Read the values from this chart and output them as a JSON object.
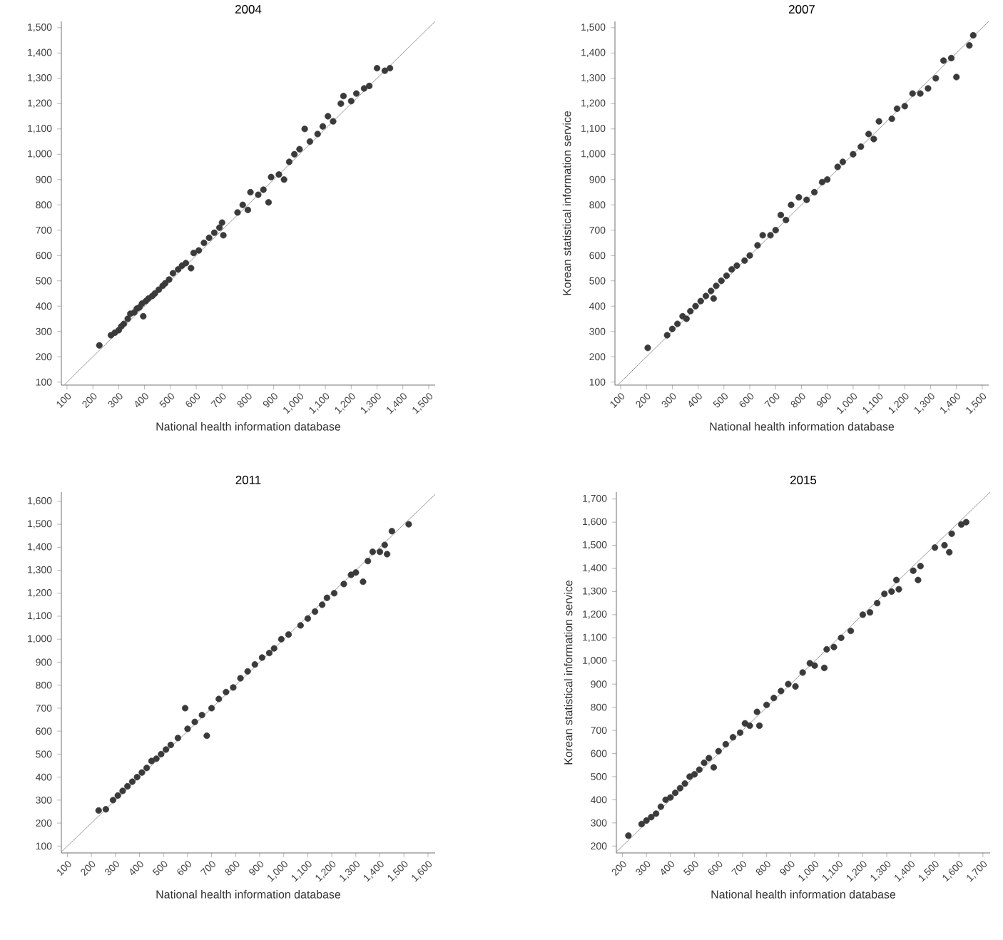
{
  "chart_data": [
    {
      "type": "scatter",
      "title": "2004",
      "xlabel": "National health information database",
      "xlim": [
        78,
        1525
      ],
      "ylim": [
        88,
        1525
      ],
      "xticks": [
        100,
        200,
        300,
        400,
        500,
        600,
        700,
        800,
        900,
        {
          "value": 1000,
          "label": "1,000"
        },
        {
          "value": 1100,
          "label": "1,100"
        },
        {
          "value": 1200,
          "label": "1,200"
        },
        {
          "value": 1300,
          "label": "1,300"
        },
        {
          "value": 1400,
          "label": "1,400"
        },
        {
          "value": 1500,
          "label": "1,500"
        }
      ],
      "yticks": [
        100,
        200,
        300,
        400,
        500,
        600,
        700,
        800,
        900,
        {
          "value": 1000,
          "label": "1,000"
        },
        {
          "value": 1100,
          "label": "1,100"
        },
        {
          "value": 1200,
          "label": "1,200"
        },
        {
          "value": 1300,
          "label": "1,300"
        },
        {
          "value": 1400,
          "label": "1,400"
        },
        {
          "value": 1500,
          "label": "1,500"
        }
      ],
      "series": [
        {
          "marker": "circle",
          "color": "#3a3a3a",
          "x": [
            225,
            270,
            285,
            300,
            310,
            320,
            335,
            345,
            360,
            370,
            380,
            390,
            395,
            405,
            415,
            430,
            440,
            455,
            470,
            480,
            495,
            510,
            530,
            545,
            560,
            580,
            590,
            610,
            630,
            650,
            670,
            690,
            700,
            705,
            760,
            780,
            800,
            810,
            840,
            860,
            880,
            890,
            920,
            940,
            960,
            980,
            1000,
            1020,
            1040,
            1070,
            1090,
            1110,
            1130,
            1160,
            1170,
            1200,
            1220,
            1250,
            1270,
            1300,
            1330,
            1350
          ],
          "values": [
            245,
            285,
            295,
            305,
            320,
            330,
            350,
            370,
            375,
            390,
            395,
            410,
            360,
            420,
            430,
            440,
            450,
            465,
            480,
            490,
            505,
            530,
            545,
            560,
            570,
            550,
            610,
            620,
            650,
            670,
            690,
            710,
            730,
            680,
            770,
            800,
            780,
            850,
            840,
            860,
            810,
            910,
            920,
            900,
            970,
            1000,
            1020,
            1100,
            1050,
            1080,
            1110,
            1150,
            1130,
            1200,
            1230,
            1210,
            1240,
            1260,
            1270,
            1340,
            1330,
            1340
          ]
        },
        {
          "type": "line",
          "marker": "none",
          "color": "#999999",
          "x": [
            88,
            1525
          ],
          "values": [
            88,
            1525
          ]
        }
      ]
    },
    {
      "type": "scatter",
      "title": "2007",
      "xlabel": "National health information database",
      "ylabel": "Korean statistical information service",
      "xlim": [
        78,
        1525
      ],
      "ylim": [
        88,
        1525
      ],
      "xticks": [
        100,
        200,
        300,
        400,
        500,
        600,
        700,
        800,
        900,
        {
          "value": 1000,
          "label": "1,000"
        },
        {
          "value": 1100,
          "label": "1,100"
        },
        {
          "value": 1200,
          "label": "1,200"
        },
        {
          "value": 1300,
          "label": "1,300"
        },
        {
          "value": 1400,
          "label": "1,400"
        },
        {
          "value": 1500,
          "label": "1,500"
        }
      ],
      "yticks": [
        100,
        200,
        300,
        400,
        500,
        600,
        700,
        800,
        900,
        {
          "value": 1000,
          "label": "1,000"
        },
        {
          "value": 1100,
          "label": "1,100"
        },
        {
          "value": 1200,
          "label": "1,200"
        },
        {
          "value": 1300,
          "label": "1,300"
        },
        {
          "value": 1400,
          "label": "1,400"
        },
        {
          "value": 1500,
          "label": "1,500"
        }
      ],
      "series": [
        {
          "marker": "circle",
          "color": "#3a3a3a",
          "x": [
            205,
            280,
            300,
            320,
            340,
            355,
            370,
            390,
            410,
            430,
            450,
            460,
            470,
            490,
            510,
            530,
            550,
            580,
            600,
            630,
            650,
            680,
            700,
            720,
            740,
            760,
            790,
            820,
            850,
            880,
            900,
            940,
            960,
            1000,
            1030,
            1060,
            1080,
            1100,
            1150,
            1170,
            1200,
            1230,
            1260,
            1290,
            1320,
            1350,
            1380,
            1400,
            1450,
            1465
          ],
          "values": [
            235,
            285,
            310,
            330,
            360,
            350,
            380,
            400,
            420,
            440,
            460,
            430,
            480,
            500,
            520,
            545,
            560,
            580,
            600,
            640,
            680,
            680,
            700,
            760,
            740,
            800,
            830,
            820,
            850,
            890,
            900,
            950,
            970,
            1000,
            1030,
            1080,
            1060,
            1130,
            1140,
            1180,
            1190,
            1240,
            1240,
            1260,
            1300,
            1370,
            1380,
            1305,
            1430,
            1470
          ]
        },
        {
          "type": "line",
          "marker": "none",
          "color": "#999999",
          "x": [
            88,
            1525
          ],
          "values": [
            88,
            1525
          ]
        }
      ]
    },
    {
      "type": "scatter",
      "title": "2011",
      "xlabel": "National health information database",
      "xlim": [
        75,
        1630
      ],
      "ylim": [
        70,
        1640
      ],
      "xticks": [
        100,
        200,
        300,
        400,
        500,
        600,
        700,
        800,
        900,
        {
          "value": 1000,
          "label": "1,000"
        },
        {
          "value": 1100,
          "label": "1,100"
        },
        {
          "value": 1200,
          "label": "1,200"
        },
        {
          "value": 1300,
          "label": "1,300"
        },
        {
          "value": 1400,
          "label": "1,400"
        },
        {
          "value": 1500,
          "label": "1,500"
        },
        {
          "value": 1600,
          "label": "1,600"
        }
      ],
      "yticks": [
        100,
        200,
        300,
        400,
        500,
        600,
        700,
        800,
        900,
        {
          "value": 1000,
          "label": "1,000"
        },
        {
          "value": 1100,
          "label": "1,100"
        },
        {
          "value": 1200,
          "label": "1,200"
        },
        {
          "value": 1300,
          "label": "1,300"
        },
        {
          "value": 1400,
          "label": "1,400"
        },
        {
          "value": 1500,
          "label": "1,500"
        },
        {
          "value": 1600,
          "label": "1,600"
        }
      ],
      "series": [
        {
          "marker": "circle",
          "color": "#3a3a3a",
          "x": [
            230,
            260,
            290,
            310,
            330,
            350,
            370,
            390,
            410,
            430,
            450,
            470,
            490,
            510,
            530,
            560,
            590,
            600,
            630,
            660,
            680,
            700,
            730,
            760,
            790,
            820,
            850,
            880,
            910,
            940,
            960,
            990,
            1020,
            1070,
            1100,
            1130,
            1160,
            1180,
            1210,
            1250,
            1280,
            1300,
            1330,
            1350,
            1370,
            1400,
            1420,
            1430,
            1450,
            1520
          ],
          "values": [
            255,
            260,
            300,
            320,
            340,
            360,
            380,
            400,
            420,
            440,
            470,
            480,
            500,
            520,
            540,
            570,
            700,
            610,
            640,
            670,
            580,
            700,
            740,
            770,
            790,
            830,
            860,
            890,
            920,
            940,
            960,
            1000,
            1020,
            1060,
            1090,
            1120,
            1150,
            1180,
            1200,
            1240,
            1280,
            1290,
            1250,
            1340,
            1380,
            1380,
            1410,
            1370,
            1470,
            1500
          ]
        },
        {
          "type": "line",
          "marker": "none",
          "color": "#999999",
          "x": [
            75,
            1630
          ],
          "values": [
            75,
            1630
          ]
        }
      ]
    },
    {
      "type": "scatter",
      "title": "2015",
      "xlabel": "National health information database",
      "ylabel": "Korean statistical information service",
      "xlim": [
        175,
        1730
      ],
      "ylim": [
        170,
        1730
      ],
      "xticks": [
        200,
        300,
        400,
        500,
        600,
        700,
        800,
        900,
        {
          "value": 1000,
          "label": "1,000"
        },
        {
          "value": 1100,
          "label": "1,100"
        },
        {
          "value": 1200,
          "label": "1,200"
        },
        {
          "value": 1300,
          "label": "1,300"
        },
        {
          "value": 1400,
          "label": "1,400"
        },
        {
          "value": 1500,
          "label": "1,500"
        },
        {
          "value": 1600,
          "label": "1,600"
        },
        {
          "value": 1700,
          "label": "1,700"
        }
      ],
      "yticks": [
        200,
        300,
        400,
        500,
        600,
        700,
        800,
        900,
        {
          "value": 1000,
          "label": "1,000"
        },
        {
          "value": 1100,
          "label": "1,100"
        },
        {
          "value": 1200,
          "label": "1,200"
        },
        {
          "value": 1300,
          "label": "1,300"
        },
        {
          "value": 1400,
          "label": "1,400"
        },
        {
          "value": 1500,
          "label": "1,500"
        },
        {
          "value": 1600,
          "label": "1,600"
        },
        {
          "value": 1700,
          "label": "1,700"
        }
      ],
      "series": [
        {
          "marker": "circle",
          "color": "#3a3a3a",
          "x": [
            225,
            280,
            300,
            320,
            340,
            360,
            380,
            400,
            420,
            440,
            460,
            480,
            500,
            520,
            540,
            560,
            580,
            600,
            630,
            660,
            690,
            710,
            730,
            760,
            770,
            800,
            830,
            860,
            890,
            920,
            950,
            980,
            1000,
            1040,
            1050,
            1080,
            1110,
            1150,
            1200,
            1230,
            1260,
            1290,
            1320,
            1340,
            1350,
            1410,
            1430,
            1440,
            1500,
            1540,
            1560,
            1570,
            1610,
            1630
          ],
          "values": [
            245,
            295,
            310,
            325,
            340,
            370,
            400,
            410,
            430,
            450,
            470,
            500,
            510,
            530,
            560,
            580,
            540,
            610,
            640,
            670,
            690,
            730,
            720,
            780,
            720,
            810,
            840,
            870,
            900,
            890,
            950,
            990,
            980,
            970,
            1050,
            1060,
            1100,
            1130,
            1200,
            1210,
            1250,
            1290,
            1300,
            1350,
            1310,
            1390,
            1350,
            1410,
            1490,
            1500,
            1470,
            1550,
            1590,
            1600
          ]
        },
        {
          "type": "line",
          "marker": "none",
          "color": "#999999",
          "x": [
            175,
            1730
          ],
          "values": [
            175,
            1730
          ]
        }
      ]
    }
  ]
}
